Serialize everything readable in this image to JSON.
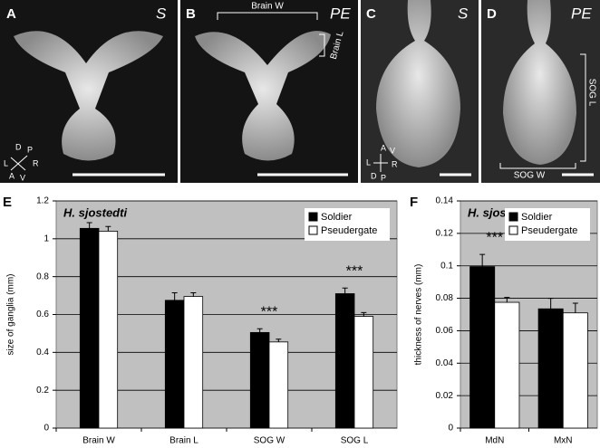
{
  "panels": [
    {
      "letter": "A",
      "caste": "S",
      "orientation": [
        "D",
        "P",
        "L",
        "R",
        "A",
        "V"
      ]
    },
    {
      "letter": "B",
      "caste": "PE",
      "brain_w": "Brain W",
      "brain_l": "Brain L"
    },
    {
      "letter": "C",
      "caste": "S",
      "orientation": [
        "A",
        "V",
        "L",
        "R",
        "D",
        "P"
      ]
    },
    {
      "letter": "D",
      "caste": "PE",
      "sog_l": "SOG L",
      "sog_w": "SOG W"
    }
  ],
  "chart_data": [
    {
      "type": "bar",
      "panel_letter": "E",
      "title": "H. sjostedti",
      "y_label": "size of ganglia (mm)",
      "categories": [
        "Brain W",
        "Brain L",
        "SOG W",
        "SOG L"
      ],
      "series": [
        {
          "name": "Soldier",
          "color": "#000000",
          "values": [
            1.055,
            0.675,
            0.505,
            0.71
          ],
          "errors": [
            0.03,
            0.04,
            0.02,
            0.03
          ]
        },
        {
          "name": "Pseudergate",
          "color": "#ffffff",
          "values": [
            1.04,
            0.695,
            0.455,
            0.59
          ],
          "errors": [
            0.025,
            0.02,
            0.015,
            0.02
          ]
        }
      ],
      "annotations": [
        null,
        null,
        "***",
        "***"
      ],
      "ylim": [
        0,
        1.2
      ],
      "yticks": [
        0,
        0.2,
        0.4,
        0.6,
        0.8,
        1,
        1.2
      ],
      "grid": true,
      "legend": "upper right"
    },
    {
      "type": "bar",
      "panel_letter": "F",
      "title": "H. sjostedti",
      "y_label": "thickness of nerves (mm)",
      "categories": [
        "MdN",
        "MxN"
      ],
      "series": [
        {
          "name": "Soldier",
          "color": "#000000",
          "values": [
            0.0995,
            0.0735
          ],
          "errors": [
            0.0075,
            0.0065
          ]
        },
        {
          "name": "Pseudergate",
          "color": "#ffffff",
          "values": [
            0.0775,
            0.071
          ],
          "errors": [
            0.003,
            0.006
          ]
        }
      ],
      "annotations": [
        "***",
        null
      ],
      "ylim": [
        0,
        0.14
      ],
      "yticks": [
        0,
        0.02,
        0.04,
        0.06,
        0.08,
        0.1,
        0.12,
        0.14
      ],
      "grid": true,
      "legend": "upper right"
    }
  ]
}
